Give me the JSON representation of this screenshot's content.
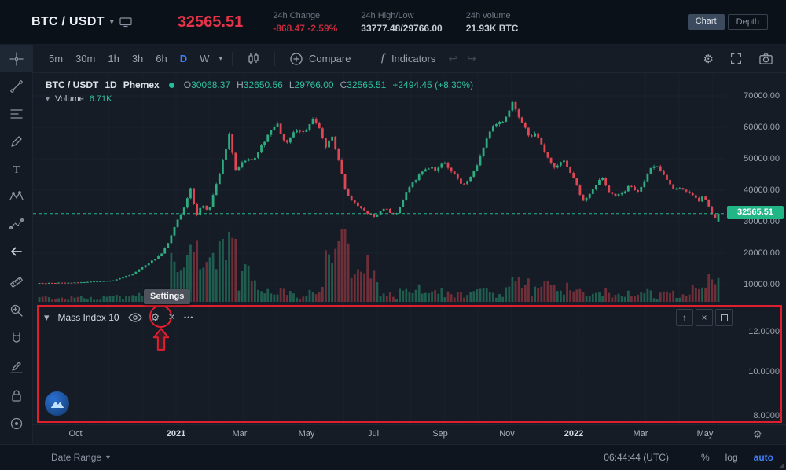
{
  "header": {
    "symbol": "BTC / USDT",
    "price": "32565.51",
    "stats": [
      {
        "label": "24h Change",
        "value": "-868.47 -2.59%",
        "state": "negative"
      },
      {
        "label": "24h High/Low",
        "value": "33777.48/29766.00",
        "state": "normal"
      },
      {
        "label": "24h volume",
        "value": "21.93K BTC",
        "state": "normal"
      }
    ],
    "view_buttons": {
      "chart": "Chart",
      "depth": "Depth"
    }
  },
  "toolbar": {
    "timeframes": [
      "5m",
      "30m",
      "1h",
      "3h",
      "6h",
      "D",
      "W"
    ],
    "active_timeframe": "D",
    "compare_label": "Compare",
    "indicators_label": "Indicators"
  },
  "chart": {
    "legend": {
      "symbol": "BTC / USDT",
      "interval": "1D",
      "exchange": "Phemex",
      "ohlc_labels": [
        "O",
        "H",
        "L",
        "C"
      ],
      "ohlc_values": [
        "30068.37",
        "32650.56",
        "29766.00",
        "32565.51"
      ],
      "change": "+2494.45 (+8.30%)"
    },
    "volume_label": "Volume",
    "volume_value": "6.71K",
    "price_axis": [
      "70000.00",
      "60000.00",
      "50000.00",
      "40000.00",
      "30000.00",
      "20000.00",
      "10000.00"
    ],
    "last_price": "32565.51",
    "time_axis": [
      "Oct",
      "2021",
      "Mar",
      "May",
      "Jul",
      "Sep",
      "Nov",
      "2022",
      "Mar",
      "May"
    ]
  },
  "indicator_panel": {
    "name": "Mass Index 10",
    "tooltip": "Settings",
    "axis": [
      "12.0000",
      "10.0000",
      "8.0000"
    ]
  },
  "footer": {
    "date_range": "Date Range",
    "time": "06:44:44 (UTC)",
    "percent": "%",
    "log": "log",
    "auto": "auto"
  },
  "icons": {
    "caret_down": "▾",
    "gear": "⚙",
    "close": "×",
    "more": "•••",
    "arrow_up": "↑",
    "undo": "↩",
    "redo": "↪"
  },
  "colors": {
    "up": "#2eac80",
    "down": "#dd4653",
    "accent_blue": "#3f7ef7",
    "price_red": "#e5344a",
    "badge_green": "#22b687",
    "annotation_red": "#df1f2f",
    "grid": "#1a212d"
  },
  "chart_data": {
    "type": "candlestick",
    "symbol": "BTC/USDT",
    "interval": "1D",
    "exchange": "Phemex",
    "visible_range": [
      "Oct 2020",
      "May 2022"
    ],
    "y_axis": {
      "min": 8000,
      "max": 72000,
      "ticks": [
        70000,
        60000,
        50000,
        40000,
        30000,
        20000,
        10000
      ]
    },
    "x_ticks": [
      "Oct",
      "2021",
      "Mar",
      "May",
      "Jul",
      "Sep",
      "Nov",
      "2022",
      "Mar",
      "May"
    ],
    "last_candle": {
      "open": 30068.37,
      "high": 32650.56,
      "low": 29766.0,
      "close": 32565.51,
      "change": 2494.45,
      "change_pct": 8.3
    },
    "last_price": 32565.51,
    "volume_display": "6.71K",
    "price_path_anchors": [
      [
        0,
        10400
      ],
      [
        0.052,
        10600
      ],
      [
        0.11,
        11300
      ],
      [
        0.139,
        13500
      ],
      [
        0.162,
        17000
      ],
      [
        0.179,
        19500
      ],
      [
        0.191,
        23500
      ],
      [
        0.2,
        29000
      ],
      [
        0.212,
        34000
      ],
      [
        0.223,
        40500
      ],
      [
        0.231,
        31500
      ],
      [
        0.239,
        35500
      ],
      [
        0.249,
        33000
      ],
      [
        0.266,
        46000
      ],
      [
        0.28,
        57800
      ],
      [
        0.289,
        46500
      ],
      [
        0.301,
        49000
      ],
      [
        0.318,
        50500
      ],
      [
        0.335,
        57000
      ],
      [
        0.35,
        61000
      ],
      [
        0.362,
        54500
      ],
      [
        0.376,
        58500
      ],
      [
        0.393,
        59000
      ],
      [
        0.402,
        63500
      ],
      [
        0.413,
        59500
      ],
      [
        0.422,
        53500
      ],
      [
        0.431,
        57500
      ],
      [
        0.442,
        49000
      ],
      [
        0.451,
        40000
      ],
      [
        0.459,
        36500
      ],
      [
        0.468,
        35500
      ],
      [
        0.477,
        33500
      ],
      [
        0.486,
        32500
      ],
      [
        0.495,
        31500
      ],
      [
        0.505,
        34500
      ],
      [
        0.514,
        33500
      ],
      [
        0.524,
        31800
      ],
      [
        0.532,
        35000
      ],
      [
        0.541,
        39500
      ],
      [
        0.551,
        42500
      ],
      [
        0.564,
        46000
      ],
      [
        0.576,
        47500
      ],
      [
        0.585,
        46000
      ],
      [
        0.595,
        48800
      ],
      [
        0.605,
        46500
      ],
      [
        0.614,
        44500
      ],
      [
        0.623,
        41000
      ],
      [
        0.632,
        43500
      ],
      [
        0.644,
        48000
      ],
      [
        0.656,
        55000
      ],
      [
        0.667,
        60500
      ],
      [
        0.676,
        61500
      ],
      [
        0.688,
        63000
      ],
      [
        0.697,
        68000
      ],
      [
        0.705,
        63500
      ],
      [
        0.713,
        60500
      ],
      [
        0.723,
        56500
      ],
      [
        0.732,
        58000
      ],
      [
        0.742,
        53500
      ],
      [
        0.751,
        49000
      ],
      [
        0.761,
        47000
      ],
      [
        0.771,
        49500
      ],
      [
        0.78,
        46500
      ],
      [
        0.79,
        42500
      ],
      [
        0.8,
        36500
      ],
      [
        0.809,
        38500
      ],
      [
        0.819,
        41500
      ],
      [
        0.829,
        44000
      ],
      [
        0.838,
        39500
      ],
      [
        0.85,
        38000
      ],
      [
        0.861,
        39200
      ],
      [
        0.87,
        42000
      ],
      [
        0.88,
        38800
      ],
      [
        0.889,
        41500
      ],
      [
        0.899,
        46500
      ],
      [
        0.908,
        47800
      ],
      [
        0.917,
        45500
      ],
      [
        0.926,
        42500
      ],
      [
        0.935,
        40000
      ],
      [
        0.945,
        40500
      ],
      [
        0.954,
        39500
      ],
      [
        0.963,
        38000
      ],
      [
        0.972,
        36200
      ],
      [
        0.979,
        38500
      ],
      [
        0.986,
        34500
      ],
      [
        0.992,
        31500
      ],
      [
        0.998,
        31000
      ],
      [
        1,
        32565.51
      ]
    ],
    "volume_spikes": [
      [
        0.19,
        0.32,
        2.3
      ],
      [
        0.42,
        0.5,
        3.2
      ],
      [
        0.55,
        0.6,
        1.4
      ],
      [
        0.68,
        0.78,
        1.7
      ],
      [
        0.96,
        1.0,
        2.0
      ]
    ],
    "indicator_pane": {
      "name": "Mass Index",
      "length": 10,
      "y_ticks": [
        12.0,
        10.0,
        8.0
      ],
      "plot_visible": false
    }
  }
}
